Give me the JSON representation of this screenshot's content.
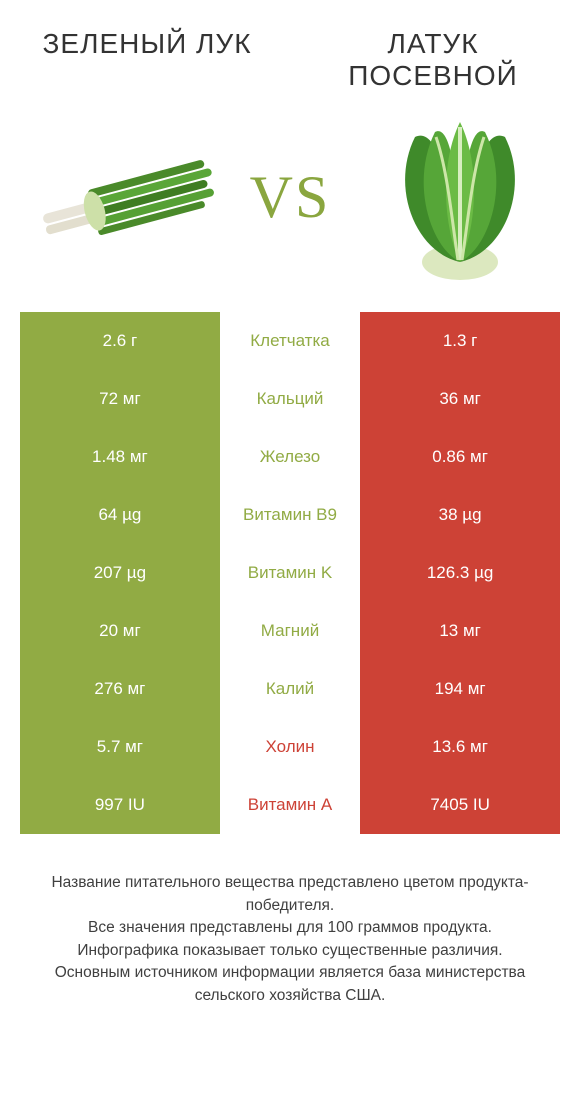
{
  "colors": {
    "left_swatch": "#91ab44",
    "right_swatch": "#cd4236",
    "vs_color": "#8aa63f",
    "label_left_winner": "#91ab44",
    "label_right_winner": "#cd4236",
    "bg": "#ffffff",
    "text": "#333333"
  },
  "header": {
    "left_title": "ЗЕЛЕНЫЙ ЛУК",
    "right_title": "ЛАТУК ПОСЕВНОЙ",
    "vs": "VS"
  },
  "comparison": {
    "type": "table",
    "rows": [
      {
        "label": "Клетчатка",
        "left": "2.6 г",
        "right": "1.3 г",
        "winner": "left"
      },
      {
        "label": "Кальций",
        "left": "72 мг",
        "right": "36 мг",
        "winner": "left"
      },
      {
        "label": "Железо",
        "left": "1.48 мг",
        "right": "0.86 мг",
        "winner": "left"
      },
      {
        "label": "Витамин B9",
        "left": "64 µg",
        "right": "38 µg",
        "winner": "left"
      },
      {
        "label": "Витамин K",
        "left": "207 µg",
        "right": "126.3 µg",
        "winner": "left"
      },
      {
        "label": "Магний",
        "left": "20 мг",
        "right": "13 мг",
        "winner": "left"
      },
      {
        "label": "Калий",
        "left": "276 мг",
        "right": "194 мг",
        "winner": "left"
      },
      {
        "label": "Холин",
        "left": "5.7 мг",
        "right": "13.6 мг",
        "winner": "right"
      },
      {
        "label": "Витамин A",
        "left": "997 IU",
        "right": "7405 IU",
        "winner": "right"
      }
    ]
  },
  "footer": {
    "line1": "Название питательного вещества представлено цветом продукта-победителя.",
    "line2": "Все значения представлены для 100 граммов продукта.",
    "line3": "Инфографика показывает только существенные различия.",
    "line4": "Основным источником информации является база министерства сельского хозяйства США."
  }
}
